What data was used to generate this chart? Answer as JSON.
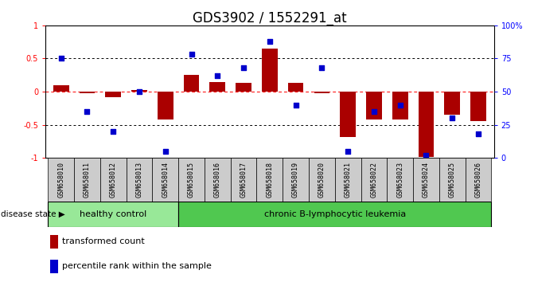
{
  "title": "GDS3902 / 1552291_at",
  "samples": [
    "GSM658010",
    "GSM658011",
    "GSM658012",
    "GSM658013",
    "GSM658014",
    "GSM658015",
    "GSM658016",
    "GSM658017",
    "GSM658018",
    "GSM658019",
    "GSM658020",
    "GSM658021",
    "GSM658022",
    "GSM658023",
    "GSM658024",
    "GSM658025",
    "GSM658026"
  ],
  "bar_values": [
    0.1,
    -0.02,
    -0.08,
    0.03,
    -0.42,
    0.25,
    0.15,
    0.13,
    0.65,
    0.13,
    -0.02,
    -0.68,
    -0.42,
    -0.42,
    -0.98,
    -0.35,
    -0.45
  ],
  "dot_values": [
    75,
    35,
    20,
    50,
    5,
    78,
    62,
    68,
    88,
    40,
    68,
    5,
    35,
    40,
    2,
    30,
    18
  ],
  "healthy_count": 5,
  "disease_label_healthy": "healthy control",
  "disease_label_chronic": "chronic B-lymphocytic leukemia",
  "disease_state_label": "disease state",
  "legend_bar": "transformed count",
  "legend_dot": "percentile rank within the sample",
  "bar_color": "#AA0000",
  "dot_color": "#0000CC",
  "healthy_bg": "#98E898",
  "chronic_bg": "#50C850",
  "ylim_left": [
    -1,
    1
  ],
  "ylim_right": [
    0,
    100
  ],
  "yticks_left": [
    -1,
    -0.5,
    0,
    0.5,
    1
  ],
  "yticks_right": [
    0,
    25,
    50,
    75,
    100
  ],
  "ytick_labels_left": [
    "-1",
    "-0.5",
    "0",
    "0.5",
    "1"
  ],
  "ytick_labels_right": [
    "0",
    "25",
    "50",
    "75",
    "100%"
  ],
  "title_fontsize": 12,
  "tick_fontsize": 7,
  "label_fontsize": 8
}
